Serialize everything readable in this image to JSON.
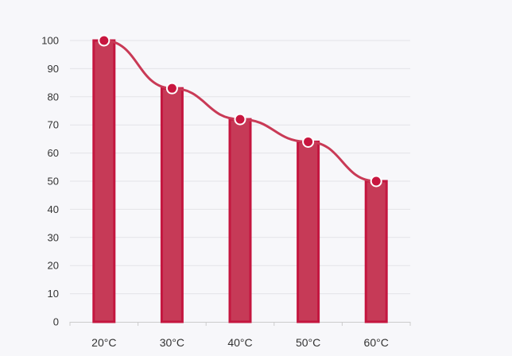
{
  "chart_data": {
    "type": "bar",
    "categories": [
      "20°C",
      "30°C",
      "40°C",
      "50°C",
      "60°C"
    ],
    "series": [
      {
        "values": [
          100,
          83,
          72,
          64,
          50
        ],
        "render": "bar",
        "color": "#c4314f"
      },
      {
        "values": [
          100,
          83,
          72,
          64,
          50
        ],
        "render": "line",
        "smooth": true,
        "color": "#c93a56"
      }
    ],
    "ylim": [
      0,
      100
    ],
    "yticks": [
      0,
      10,
      20,
      30,
      40,
      50,
      60,
      70,
      80,
      90,
      100
    ],
    "grid": true,
    "legend": "none",
    "colors": {
      "bar_fill": "#c63a57",
      "bar_stroke": "#c4163f",
      "line": "#c93a56",
      "marker_fill": "#c8163f",
      "marker_stroke": "#ffffff",
      "grid": "#e3e3e8",
      "axis": "#cccccc",
      "text": "#333333"
    }
  }
}
